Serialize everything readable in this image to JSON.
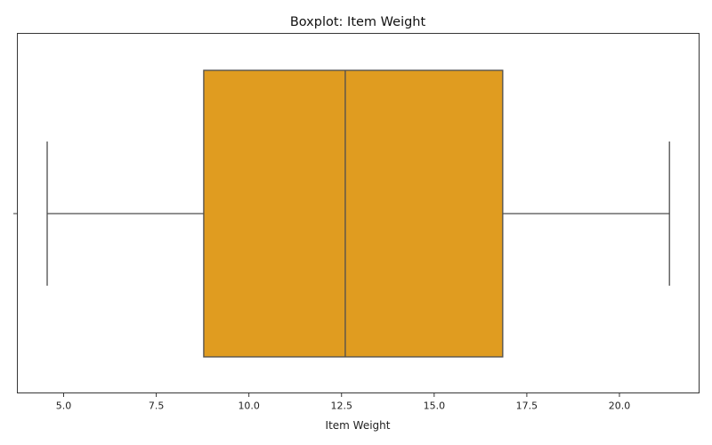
{
  "chart_data": {
    "type": "box",
    "title": "Boxplot: Item Weight",
    "xlabel": "Item Weight",
    "ylabel": "",
    "xlim": [
      3.75,
      22.15
    ],
    "x_ticks": [
      5.0,
      7.5,
      10.0,
      12.5,
      15.0,
      17.5,
      20.0
    ],
    "x_tick_labels": [
      "5.0",
      "7.5",
      "10.0",
      "12.5",
      "15.0",
      "17.5",
      "20.0"
    ],
    "grid": false,
    "box": {
      "whisker_low": 4.555,
      "q1": 8.78,
      "median": 12.6,
      "q3": 16.85,
      "whisker_high": 21.35
    },
    "box_color": "#e09c20",
    "line_color": "#4d4d4d"
  }
}
